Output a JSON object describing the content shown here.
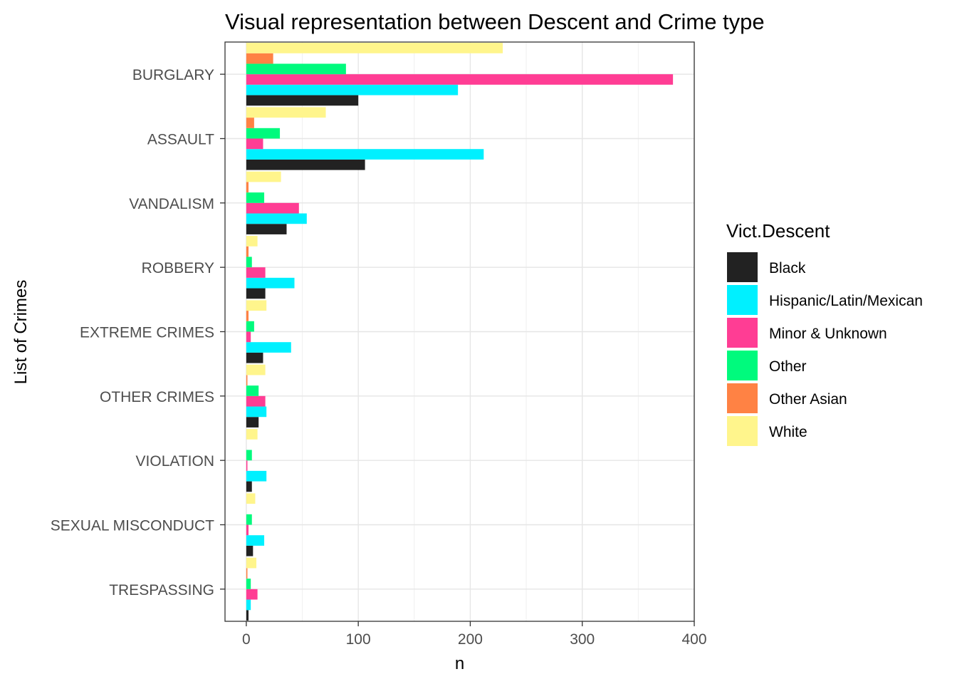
{
  "chart_data": {
    "type": "bar",
    "orientation": "horizontal",
    "title": "Visual representation between Descent and Crime type",
    "xlabel": "n",
    "ylabel": "List of Crimes",
    "xlim": [
      -19,
      400
    ],
    "xticks": [
      0,
      100,
      200,
      300,
      400
    ],
    "grid": true,
    "legend": {
      "title": "Vict.Descent",
      "placement": "right"
    },
    "categories": [
      "BURGLARY",
      "ASSAULT",
      "VANDALISM",
      "ROBBERY",
      "EXTREME CRIMES",
      "OTHER CRIMES",
      "VIOLATION",
      "SEXUAL MISCONDUCT",
      "TRESPASSING"
    ],
    "series": [
      {
        "name": "Black",
        "color": "#222222",
        "values": [
          100,
          106,
          36,
          17,
          15,
          11,
          5,
          6,
          2
        ]
      },
      {
        "name": "Hispanic/Latin/Mexican",
        "color": "#00f0ff",
        "values": [
          189,
          212,
          54,
          43,
          40,
          18,
          18,
          16,
          4
        ]
      },
      {
        "name": "Minor & Unknown",
        "color": "#ff3d94",
        "values": [
          381,
          15,
          47,
          17,
          4,
          17,
          1,
          2,
          10
        ]
      },
      {
        "name": "Other",
        "color": "#00fa7d",
        "values": [
          89,
          30,
          16,
          5,
          7,
          11,
          5,
          5,
          4
        ]
      },
      {
        "name": "Other Asian",
        "color": "#ff8244",
        "values": [
          24,
          7,
          2,
          2,
          2,
          1,
          0,
          0,
          1
        ]
      },
      {
        "name": "White",
        "color": "#fff58c",
        "values": [
          229,
          71,
          31,
          10,
          18,
          17,
          10,
          8,
          9
        ]
      }
    ]
  }
}
